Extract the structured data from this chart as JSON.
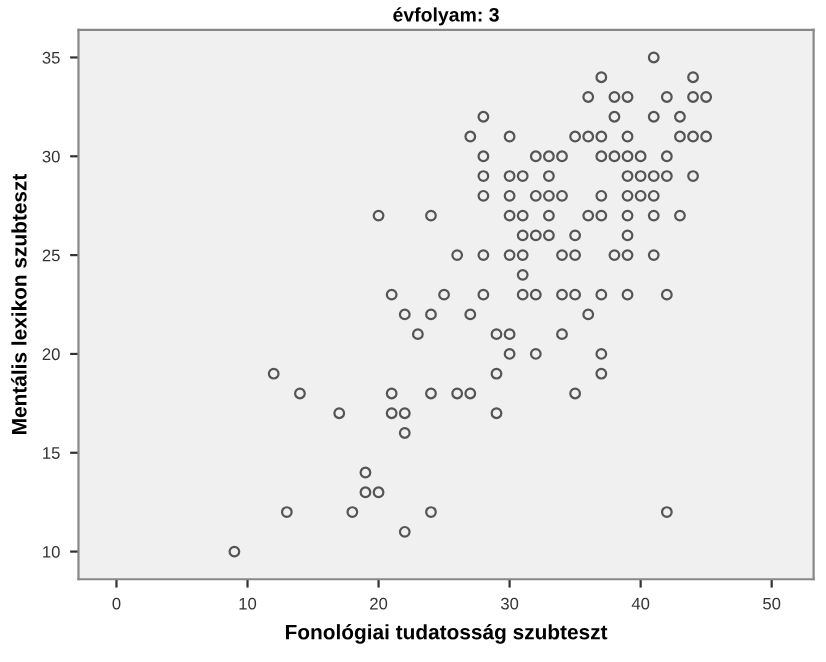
{
  "chart_data": {
    "type": "scatter",
    "title": "évfolyam: 3",
    "xlabel": "Fonológiai tudatosság szubteszt",
    "ylabel": "Mentális lexikon szubteszt",
    "xlim": [
      -2.9,
      53.2
    ],
    "ylim": [
      8.6,
      36.4
    ],
    "xticks": [
      0,
      10,
      20,
      30,
      40,
      50
    ],
    "yticks": [
      10,
      15,
      20,
      25,
      30,
      35
    ],
    "grid": false,
    "marker": "circle",
    "legend": false,
    "series": [
      {
        "color": "#555555",
        "x": [
          41,
          37,
          44,
          36,
          38,
          39,
          42,
          44,
          45,
          28,
          38,
          41,
          43,
          27,
          30,
          35,
          36,
          37,
          39,
          43,
          44,
          45,
          28,
          32,
          33,
          34,
          37,
          38,
          39,
          40,
          42,
          28,
          30,
          31,
          33,
          39,
          40,
          41,
          42,
          44,
          28,
          30,
          32,
          33,
          34,
          37,
          39,
          40,
          41,
          20,
          24,
          30,
          31,
          33,
          36,
          37,
          39,
          41,
          43,
          31,
          32,
          33,
          35,
          39,
          26,
          28,
          30,
          31,
          34,
          35,
          38,
          39,
          41,
          31,
          21,
          25,
          28,
          31,
          32,
          34,
          35,
          37,
          39,
          42,
          22,
          24,
          27,
          36,
          23,
          29,
          30,
          34,
          30,
          32,
          37,
          12,
          29,
          37,
          14,
          21,
          24,
          26,
          27,
          35,
          17,
          21,
          22,
          29,
          22,
          19,
          19,
          20,
          13,
          18,
          24,
          42,
          22,
          9
        ],
        "values": [
          35,
          34,
          34,
          33,
          33,
          33,
          33,
          33,
          33,
          32,
          32,
          32,
          32,
          31,
          31,
          31,
          31,
          31,
          31,
          31,
          31,
          31,
          30,
          30,
          30,
          30,
          30,
          30,
          30,
          30,
          30,
          29,
          29,
          29,
          29,
          29,
          29,
          29,
          29,
          29,
          28,
          28,
          28,
          28,
          28,
          28,
          28,
          28,
          28,
          27,
          27,
          27,
          27,
          27,
          27,
          27,
          27,
          27,
          27,
          26,
          26,
          26,
          26,
          26,
          25,
          25,
          25,
          25,
          25,
          25,
          25,
          25,
          25,
          24,
          23,
          23,
          23,
          23,
          23,
          23,
          23,
          23,
          23,
          23,
          22,
          22,
          22,
          22,
          21,
          21,
          21,
          21,
          20,
          20,
          20,
          19,
          19,
          19,
          18,
          18,
          18,
          18,
          18,
          18,
          17,
          17,
          17,
          17,
          16,
          14,
          13,
          13,
          12,
          12,
          12,
          12,
          11,
          10
        ]
      }
    ]
  }
}
